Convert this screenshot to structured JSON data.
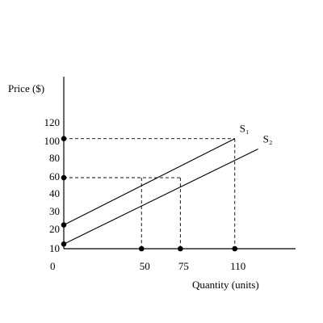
{
  "chart_data": {
    "type": "line",
    "ylabel": "Price ($)",
    "xlabel": "Quantity (units)",
    "origin_label": "0",
    "y_ticks": [
      "120",
      "100",
      "80",
      "60",
      "40",
      "30",
      "20",
      "10"
    ],
    "x_ticks": [
      "50",
      "75",
      "110"
    ],
    "series": [
      {
        "name": "S₁",
        "points": [
          [
            0,
            22
          ],
          [
            110,
            102
          ]
        ]
      },
      {
        "name": "S₂",
        "points": [
          [
            0,
            12
          ],
          [
            125,
            90
          ]
        ]
      }
    ],
    "guides": [
      {
        "y": 102,
        "x": 110
      },
      {
        "y": 58,
        "x": 75
      },
      {
        "y": 58,
        "x": 50
      }
    ],
    "axis_points_y": [
      102,
      58,
      22,
      12
    ],
    "axis_points_x": [
      50,
      75,
      110
    ]
  }
}
